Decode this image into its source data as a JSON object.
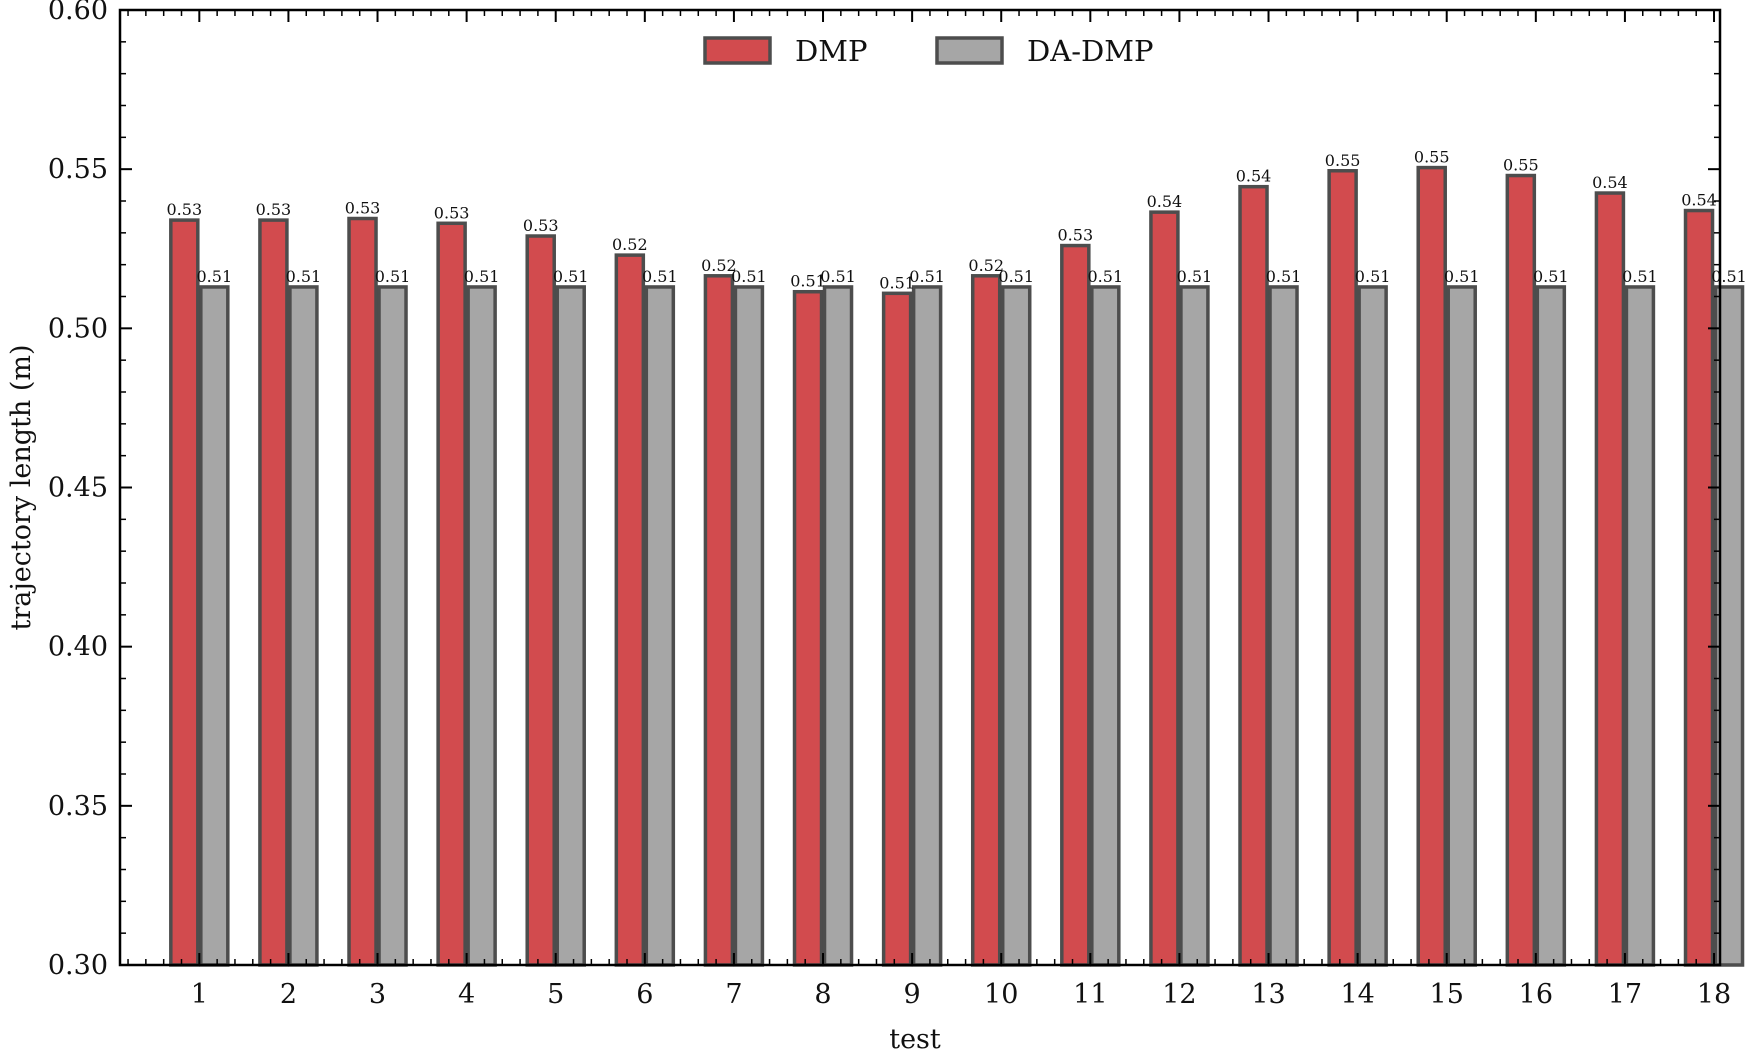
{
  "chart_data": {
    "type": "bar",
    "title": "",
    "xlabel": "test",
    "ylabel": "trajectory length (m)",
    "ylim": [
      0.3,
      0.6
    ],
    "yticks": [
      "0.30",
      "0.35",
      "0.40",
      "0.45",
      "0.50",
      "0.55",
      "0.60"
    ],
    "categories": [
      "1",
      "2",
      "3",
      "4",
      "5",
      "6",
      "7",
      "8",
      "9",
      "10",
      "11",
      "12",
      "13",
      "14",
      "15",
      "16",
      "17",
      "18"
    ],
    "series": [
      {
        "name": "DMP",
        "color": "#d24b4e",
        "values": [
          0.534,
          0.534,
          0.5345,
          0.533,
          0.529,
          0.523,
          0.5165,
          0.5115,
          0.511,
          0.5165,
          0.526,
          0.5365,
          0.5445,
          0.5495,
          0.5505,
          0.548,
          0.5425,
          0.537
        ],
        "labels": [
          "0.53",
          "0.53",
          "0.53",
          "0.53",
          "0.53",
          "0.52",
          "0.52",
          "0.51",
          "0.51",
          "0.52",
          "0.53",
          "0.54",
          "0.54",
          "0.55",
          "0.55",
          "0.55",
          "0.54",
          "0.54"
        ]
      },
      {
        "name": "DA-DMP",
        "color": "#a6a6a6",
        "values": [
          0.513,
          0.513,
          0.513,
          0.513,
          0.513,
          0.513,
          0.513,
          0.513,
          0.513,
          0.513,
          0.513,
          0.513,
          0.513,
          0.513,
          0.513,
          0.513,
          0.513,
          0.513
        ],
        "labels": [
          "0.51",
          "0.51",
          "0.51",
          "0.51",
          "0.51",
          "0.51",
          "0.51",
          "0.51",
          "0.51",
          "0.51",
          "0.51",
          "0.51",
          "0.51",
          "0.51",
          "0.51",
          "0.51",
          "0.51",
          "0.51"
        ]
      }
    ],
    "edge_color": "#4d4d4d",
    "legend_position": "top-center",
    "grid": false
  }
}
